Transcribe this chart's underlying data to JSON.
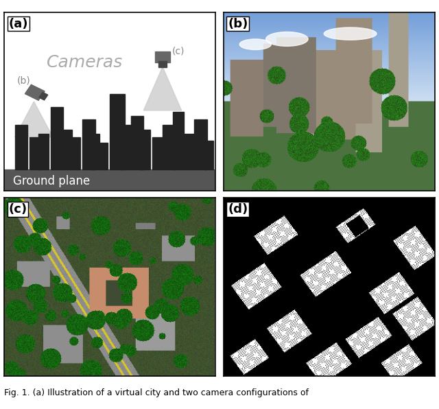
{
  "fig_width": 6.4,
  "fig_height": 5.96,
  "dpi": 100,
  "panel_labels": [
    "(a)",
    "(b)",
    "(c)",
    "(d)"
  ],
  "label_fontsize": 13,
  "label_fontweight": "bold",
  "cameras_text": "Cameras",
  "cameras_fontsize": 18,
  "cameras_color": "#aaaaaa",
  "ground_text": "Ground plane",
  "ground_text_color": "white",
  "ground_fontsize": 12,
  "camera_color": "#666666",
  "caption": "Fig. 1. (a) Illustration of a virtual city and two camera configurations of",
  "caption_fontsize": 9,
  "skyline_color": "#222222",
  "ground_plane_color": "#555555",
  "arrow_color": "#cccccc",
  "border_color": "#000000"
}
